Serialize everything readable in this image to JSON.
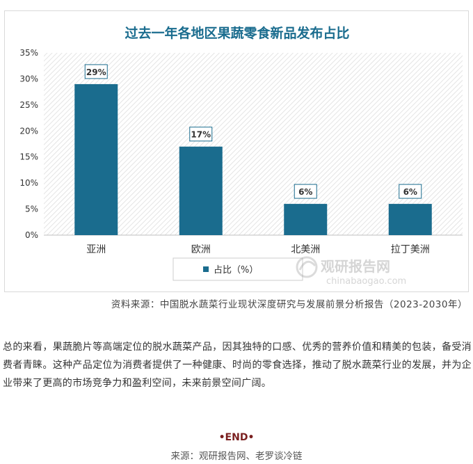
{
  "chart_data": {
    "type": "bar",
    "title": "过去一年各地区果蔬零食新品发布占比",
    "categories": [
      "亚洲",
      "欧洲",
      "北美洲",
      "拉丁美洲"
    ],
    "series": [
      {
        "name": "占比（%）",
        "values": [
          29,
          17,
          6,
          6
        ]
      }
    ],
    "data_labels": [
      "29%",
      "17%",
      "6%",
      "6%"
    ],
    "y_ticks": [
      0,
      5,
      10,
      15,
      20,
      25,
      30,
      35
    ],
    "y_tick_labels": [
      "0%",
      "5%",
      "10%",
      "15%",
      "20%",
      "25%",
      "30%",
      "35%"
    ],
    "ylim": [
      0,
      35
    ],
    "grid": false,
    "legend_position": "bottom",
    "colors": {
      "bar": "#1a6c8e",
      "title": "#1a6c8e"
    }
  },
  "watermark": {
    "brand": "观研报告网",
    "domain": "chinabaogao.com"
  },
  "caption": "资料来源：中国脱水蔬菜行业现状深度研究与发展前景分析报告（2023-2030年）",
  "paragraph": "总的来看，果蔬脆片等高端定位的脱水蔬菜产品，因其独特的口感、优秀的营养价值和精美的包装，备受消费者青睐。这种产品定位为消费者提供了一种健康、时尚的零食选择，推动了脱水蔬菜行业的发展，并为企业带来了更高的市场竞争力和盈利空间，未来前景空间广阔。",
  "end_mark": "•END•",
  "source": "来源：观研报告网、老罗谈冷链"
}
